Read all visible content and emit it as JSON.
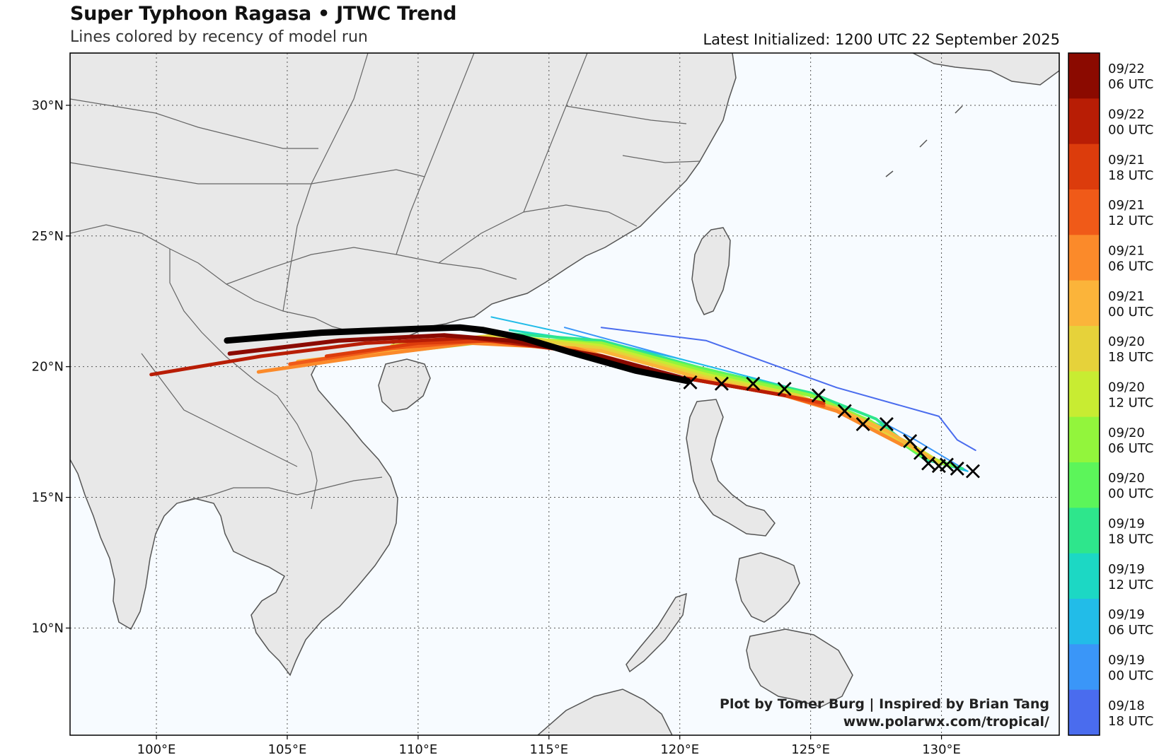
{
  "title": "Super Typhoon Ragasa • JTWC Trend",
  "subtitle": "Lines colored by recency of model run",
  "latest_init": "Latest Initialized: 1200 UTC 22 September 2025",
  "credit": {
    "line1": "Plot by Tomer Burg | Inspired by Brian Tang",
    "line2": "www.polarwx.com/tropical/"
  },
  "map": {
    "lon_range": [
      96.7,
      134.5
    ],
    "lat_range": [
      5.9,
      32.0
    ],
    "lon_ticks": [
      100,
      105,
      110,
      115,
      120,
      125,
      130
    ],
    "lon_labels": [
      "100°E",
      "105°E",
      "110°E",
      "115°E",
      "120°E",
      "125°E",
      "130°E"
    ],
    "lat_ticks": [
      10,
      15,
      20,
      25,
      30
    ],
    "lat_labels": [
      "10°N",
      "15°N",
      "20°N",
      "25°N",
      "30°N"
    ],
    "grid": true,
    "ocean_color": "#f7fbff",
    "land_color": "#e8e8e8",
    "border_color": "#555555"
  },
  "colorbar": {
    "labels": [
      {
        "date": "09/22",
        "time": "06 UTC",
        "color": "#8b0a00"
      },
      {
        "date": "09/22",
        "time": "00 UTC",
        "color": "#b81d05"
      },
      {
        "date": "09/21",
        "time": "18 UTC",
        "color": "#dc3c0c"
      },
      {
        "date": "09/21",
        "time": "12 UTC",
        "color": "#f05a18"
      },
      {
        "date": "09/21",
        "time": "06 UTC",
        "color": "#fb8a2a"
      },
      {
        "date": "09/21",
        "time": "00 UTC",
        "color": "#fbb43a"
      },
      {
        "date": "09/20",
        "time": "18 UTC",
        "color": "#e6d23a"
      },
      {
        "date": "09/20",
        "time": "12 UTC",
        "color": "#c8ec32"
      },
      {
        "date": "09/20",
        "time": "06 UTC",
        "color": "#92f53c"
      },
      {
        "date": "09/20",
        "time": "00 UTC",
        "color": "#5cf55a"
      },
      {
        "date": "09/19",
        "time": "18 UTC",
        "color": "#2ee68c"
      },
      {
        "date": "09/19",
        "time": "12 UTC",
        "color": "#1cd8c4"
      },
      {
        "date": "09/19",
        "time": "06 UTC",
        "color": "#22bce8"
      },
      {
        "date": "09/19",
        "time": "00 UTC",
        "color": "#3a96f8"
      },
      {
        "date": "09/18",
        "time": "18 UTC",
        "color": "#4a6cee"
      }
    ]
  },
  "tracks": [
    {
      "color": "#4a6cee",
      "width": 2,
      "points": [
        [
          117.0,
          21.5
        ],
        [
          121,
          21.0
        ],
        [
          126,
          19.2
        ],
        [
          129.9,
          18.1
        ],
        [
          130.6,
          17.2
        ],
        [
          131.3,
          16.8
        ]
      ]
    },
    {
      "color": "#3a96f8",
      "width": 2,
      "points": [
        [
          115.6,
          21.5
        ],
        [
          120,
          20.3
        ],
        [
          125,
          19.0
        ],
        [
          127.5,
          18.0
        ],
        [
          129,
          17.2
        ],
        [
          131.0,
          16.0
        ]
      ]
    },
    {
      "color": "#22bce8",
      "width": 2,
      "points": [
        [
          112.8,
          21.9
        ],
        [
          116,
          21.2
        ],
        [
          120,
          20.3
        ],
        [
          125,
          19.0
        ],
        [
          128,
          17.6
        ],
        [
          129.5,
          16.4
        ],
        [
          131.0,
          16.0
        ]
      ]
    },
    {
      "color": "#1cd8c4",
      "width": 3,
      "points": [
        [
          113.5,
          21.4
        ],
        [
          117,
          20.9
        ],
        [
          121,
          19.9
        ],
        [
          125,
          19.0
        ],
        [
          127.5,
          18.0
        ],
        [
          129.5,
          16.4
        ],
        [
          130.8,
          16.1
        ]
      ]
    },
    {
      "color": "#2ee68c",
      "width": 4,
      "points": [
        [
          113.0,
          21.3
        ],
        [
          117,
          21.0
        ],
        [
          121,
          19.9
        ],
        [
          125,
          19.0
        ],
        [
          127.5,
          18.0
        ],
        [
          129.3,
          16.5
        ],
        [
          130.8,
          16.1
        ]
      ]
    },
    {
      "color": "#5cf55a",
      "width": 5,
      "points": [
        [
          108.7,
          20.6
        ],
        [
          112,
          21.0
        ],
        [
          116,
          21.0
        ],
        [
          121,
          19.9
        ],
        [
          125,
          18.9
        ],
        [
          127.3,
          17.9
        ],
        [
          129.2,
          16.6
        ],
        [
          130.5,
          16.2
        ]
      ]
    },
    {
      "color": "#92f53c",
      "width": 5,
      "points": [
        [
          109.5,
          20.6
        ],
        [
          113,
          21.0
        ],
        [
          117,
          20.9
        ],
        [
          121,
          19.8
        ],
        [
          125,
          18.9
        ],
        [
          127.3,
          17.9
        ],
        [
          129,
          16.8
        ],
        [
          130.3,
          16.2
        ]
      ]
    },
    {
      "color": "#c8ec32",
      "width": 5,
      "points": [
        [
          110.2,
          20.8
        ],
        [
          113,
          21.2
        ],
        [
          117,
          20.8
        ],
        [
          121,
          19.7
        ],
        [
          124.5,
          18.9
        ],
        [
          126.8,
          18.0
        ],
        [
          128.7,
          17.1
        ],
        [
          130,
          16.3
        ]
      ]
    },
    {
      "color": "#e6d23a",
      "width": 5,
      "points": [
        [
          109.0,
          20.8
        ],
        [
          113,
          21.2
        ],
        [
          117,
          20.7
        ],
        [
          121,
          19.6
        ],
        [
          124.5,
          18.9
        ],
        [
          126.3,
          18.2
        ],
        [
          128.4,
          17.2
        ],
        [
          129.9,
          16.3
        ]
      ]
    },
    {
      "color": "#fbb43a",
      "width": 5,
      "points": [
        [
          105.4,
          20.2
        ],
        [
          109,
          20.6
        ],
        [
          113,
          21.0
        ],
        [
          117,
          20.6
        ],
        [
          121,
          19.5
        ],
        [
          124.5,
          18.8
        ],
        [
          126,
          18.4
        ],
        [
          128,
          17.5
        ],
        [
          129.6,
          16.5
        ]
      ]
    },
    {
      "color": "#fb8a2a",
      "width": 5,
      "points": [
        [
          103.9,
          19.8
        ],
        [
          108,
          20.4
        ],
        [
          112,
          20.9
        ],
        [
          116,
          20.7
        ],
        [
          120,
          19.6
        ],
        [
          124,
          18.9
        ],
        [
          126,
          18.3
        ],
        [
          128.5,
          17.0
        ]
      ]
    },
    {
      "color": "#f05a18",
      "width": 5,
      "points": [
        [
          105.1,
          20.1
        ],
        [
          109,
          20.7
        ],
        [
          112.5,
          21.0
        ],
        [
          116,
          20.6
        ],
        [
          120,
          19.6
        ],
        [
          124,
          18.9
        ],
        [
          125.5,
          18.5
        ]
      ]
    },
    {
      "color": "#dc3c0c",
      "width": 5,
      "points": [
        [
          106.5,
          20.4
        ],
        [
          110,
          20.9
        ],
        [
          113,
          21.0
        ],
        [
          116.5,
          20.5
        ],
        [
          120,
          19.6
        ],
        [
          124,
          18.9
        ],
        [
          125.5,
          18.6
        ]
      ]
    },
    {
      "color": "#b81d05",
      "width": 5,
      "points": [
        [
          99.8,
          19.7
        ],
        [
          104,
          20.4
        ],
        [
          108,
          20.9
        ],
        [
          112,
          21.1
        ],
        [
          116,
          20.6
        ],
        [
          120,
          19.6
        ],
        [
          124,
          18.9
        ]
      ]
    },
    {
      "color": "#8b0a00",
      "width": 6,
      "points": [
        [
          102.8,
          20.5
        ],
        [
          107,
          21.0
        ],
        [
          111,
          21.2
        ],
        [
          113.5,
          21.0
        ],
        [
          117,
          20.4
        ],
        [
          120,
          19.6
        ]
      ]
    },
    {
      "color": "#000000",
      "width": 9,
      "points": [
        [
          102.7,
          21.0
        ],
        [
          106.3,
          21.3
        ],
        [
          110,
          21.45
        ],
        [
          111.6,
          21.5
        ],
        [
          112.5,
          21.4
        ],
        [
          114.0,
          21.1
        ],
        [
          116.0,
          20.5
        ],
        [
          118.3,
          19.85
        ],
        [
          120.3,
          19.45
        ]
      ]
    }
  ],
  "markers": [
    [
      131.2,
      16.0
    ],
    [
      130.6,
      16.1
    ],
    [
      130.2,
      16.25
    ],
    [
      129.9,
      16.2
    ],
    [
      129.5,
      16.3
    ],
    [
      129.2,
      16.7
    ],
    [
      128.8,
      17.15
    ],
    [
      127.9,
      17.8
    ],
    [
      127.0,
      17.8
    ],
    [
      126.3,
      18.3
    ],
    [
      125.3,
      18.9
    ],
    [
      124.0,
      19.15
    ],
    [
      122.8,
      19.35
    ],
    [
      121.6,
      19.35
    ],
    [
      120.4,
      19.4
    ]
  ]
}
